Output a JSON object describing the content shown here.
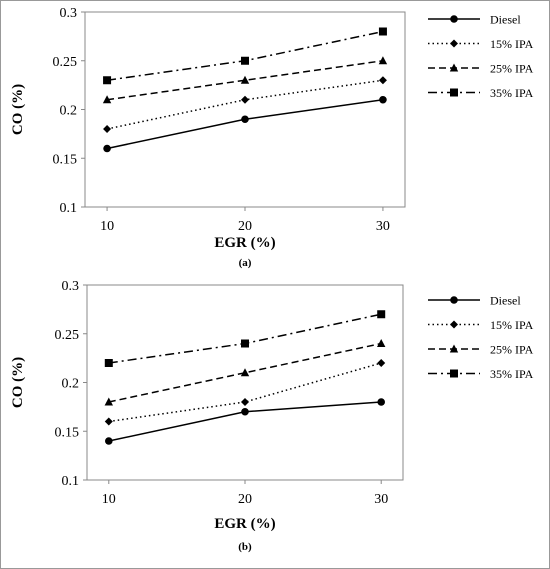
{
  "chart_data": [
    {
      "type": "line",
      "caption": "(a)",
      "xlabel": "EGR (%)",
      "ylabel": "CO (%)",
      "x": [
        10,
        20,
        30
      ],
      "ylim": [
        0.1,
        0.3
      ],
      "yticks": [
        "0.1",
        "0.15",
        "0.2",
        "0.25",
        "0.3"
      ],
      "grid": false,
      "legend_position": "right",
      "series": [
        {
          "name": "Diesel",
          "values": [
            0.16,
            0.19,
            0.21
          ],
          "marker": "circle",
          "dash": "solid"
        },
        {
          "name": "15% IPA",
          "values": [
            0.18,
            0.21,
            0.23
          ],
          "marker": "diamond",
          "dash": "dotted"
        },
        {
          "name": "25% IPA",
          "values": [
            0.21,
            0.23,
            0.25
          ],
          "marker": "triangle",
          "dash": "dashed"
        },
        {
          "name": "35% IPA",
          "values": [
            0.23,
            0.25,
            0.28
          ],
          "marker": "square",
          "dash": "dashdot"
        }
      ]
    },
    {
      "type": "line",
      "caption": "(b)",
      "xlabel": "EGR (%)",
      "ylabel": "CO (%)",
      "x": [
        10,
        20,
        30
      ],
      "ylim": [
        0.1,
        0.3
      ],
      "yticks": [
        "0.1",
        "0.15",
        "0.2",
        "0.25",
        "0.3"
      ],
      "grid": false,
      "legend_position": "right",
      "series": [
        {
          "name": "Diesel",
          "values": [
            0.14,
            0.17,
            0.18
          ],
          "marker": "circle",
          "dash": "solid"
        },
        {
          "name": "15% IPA",
          "values": [
            0.16,
            0.18,
            0.22
          ],
          "marker": "diamond",
          "dash": "dotted"
        },
        {
          "name": "25% IPA",
          "values": [
            0.18,
            0.21,
            0.24
          ],
          "marker": "triangle",
          "dash": "dashed"
        },
        {
          "name": "35% IPA",
          "values": [
            0.22,
            0.24,
            0.27
          ],
          "marker": "square",
          "dash": "dashdot"
        }
      ]
    }
  ]
}
